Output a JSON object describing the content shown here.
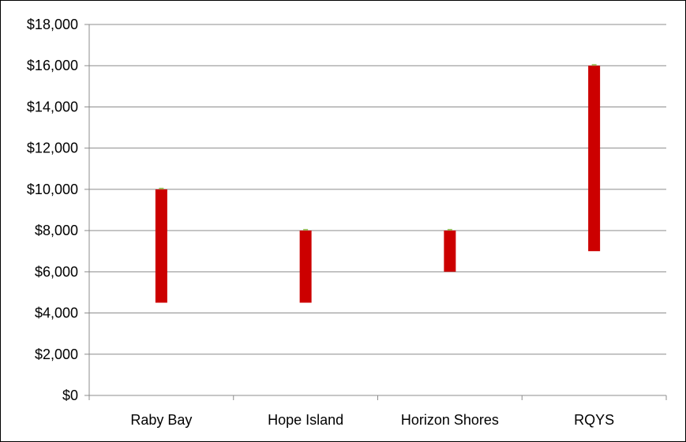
{
  "chart_data": {
    "type": "bar",
    "subtype": "floating-range",
    "title": "",
    "xlabel": "",
    "ylabel": "",
    "categories": [
      "Raby Bay",
      "Hope Island",
      "Horizon Shores",
      "RQYS"
    ],
    "series": [
      {
        "low": [
          4500,
          4500,
          6000,
          7000
        ],
        "high": [
          10000,
          8000,
          8000,
          16000
        ]
      }
    ],
    "ylim": [
      0,
      18000
    ],
    "yticks": [
      0,
      2000,
      4000,
      6000,
      8000,
      10000,
      12000,
      14000,
      16000,
      18000
    ],
    "ytick_labels": [
      "$0",
      "$2,000",
      "$4,000",
      "$6,000",
      "$8,000",
      "$10,000",
      "$12,000",
      "$14,000",
      "$16,000",
      "$18,000"
    ],
    "grid": true,
    "legend": "none",
    "colors": {
      "bar": "#cc0000",
      "marker": "#9bbb59",
      "grid": "#8c8c8c",
      "axis": "#8c8c8c"
    }
  }
}
